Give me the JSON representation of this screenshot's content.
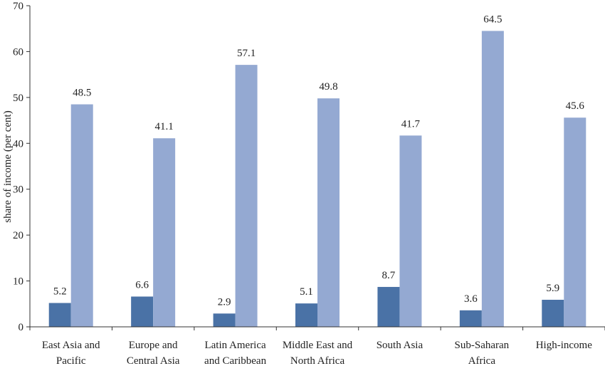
{
  "chart_data": {
    "type": "bar",
    "title": "",
    "xlabel": "",
    "ylabel": "share of income (per cent)",
    "ylim": [
      0,
      70
    ],
    "yticks": [
      0,
      10,
      20,
      30,
      40,
      50,
      60,
      70
    ],
    "grid": false,
    "legend": "none",
    "categories": [
      [
        "East Asia and",
        "Pacific"
      ],
      [
        "Europe and",
        "Central Asia"
      ],
      [
        "Latin America",
        "and Caribbean"
      ],
      [
        "Middle East and",
        "North Africa"
      ],
      [
        "South Asia"
      ],
      [
        "Sub-Saharan",
        "Africa"
      ],
      [
        "High-income"
      ]
    ],
    "series": [
      {
        "values": [
          5.2,
          6.6,
          2.9,
          5.1,
          8.7,
          3.6,
          5.9
        ],
        "color": "#4a72a6"
      },
      {
        "values": [
          48.5,
          41.1,
          57.1,
          49.8,
          41.7,
          64.5,
          45.6
        ],
        "color": "#94a9d2"
      }
    ],
    "data_labels": [
      [
        "5.2",
        "6.6",
        "2.9",
        "5.1",
        "8.7",
        "3.6",
        "5.9"
      ],
      [
        "48.5",
        "41.1",
        "57.1",
        "49.8",
        "41.7",
        "64.5",
        "45.6"
      ]
    ]
  }
}
